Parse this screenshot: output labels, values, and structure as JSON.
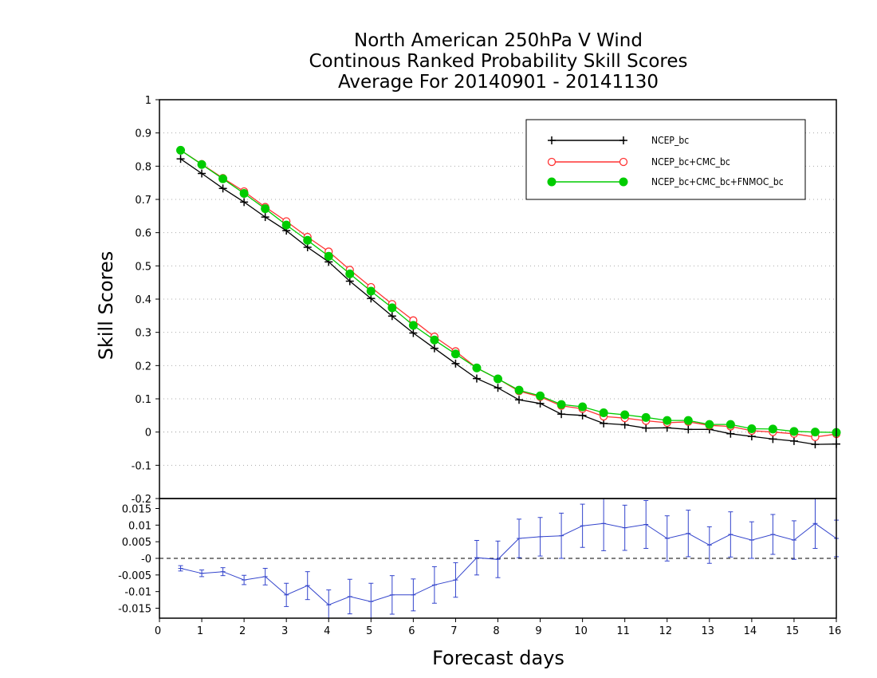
{
  "chart_data": {
    "type": "line",
    "title_lines": [
      "North American 250hPa V Wind",
      "Continous Ranked Probability Skill Scores",
      "Average For 20140901 - 20141130"
    ],
    "xlabel": "Forecast days",
    "ylabel": "Skill Scores",
    "xlim": [
      0,
      16
    ],
    "x_ticks": [
      "0",
      "1",
      "2",
      "3",
      "4",
      "5",
      "6",
      "7",
      "8",
      "9",
      "10",
      "11",
      "12",
      "13",
      "14",
      "15",
      "16"
    ],
    "grid": true,
    "legend_position": "top-right",
    "top_panel": {
      "ylim": [
        -0.2,
        1
      ],
      "y_ticks": [
        "-0.2",
        "-0.1",
        "0",
        "0.1",
        "0.2",
        "0.3",
        "0.4",
        "0.5",
        "0.6",
        "0.7",
        "0.8",
        "0.9",
        "1"
      ],
      "x": [
        0.5,
        1,
        1.5,
        2,
        2.5,
        3,
        3.5,
        4,
        4.5,
        5,
        5.5,
        6,
        6.5,
        7,
        7.5,
        8,
        8.5,
        9,
        9.5,
        10,
        10.5,
        11,
        11.5,
        12,
        12.5,
        13,
        13.5,
        14,
        14.5,
        15,
        15.5,
        16
      ],
      "series": [
        {
          "name": "NCEP_bc",
          "color": "#000000",
          "marker": "plus",
          "values": [
            0.822,
            0.778,
            0.733,
            0.692,
            0.647,
            0.606,
            0.556,
            0.512,
            0.454,
            0.402,
            0.349,
            0.298,
            0.252,
            0.206,
            0.161,
            0.133,
            0.097,
            0.086,
            0.054,
            0.05,
            0.026,
            0.022,
            0.012,
            0.013,
            0.008,
            0.008,
            -0.005,
            -0.013,
            -0.021,
            -0.027,
            -0.037,
            -0.036
          ]
        },
        {
          "name": "NCEP_bc+CMC_bc",
          "color": "#ff3333",
          "marker": "open-circle",
          "values": [
            0.848,
            0.806,
            0.764,
            0.724,
            0.677,
            0.634,
            0.587,
            0.543,
            0.488,
            0.436,
            0.385,
            0.336,
            0.287,
            0.243,
            0.193,
            0.16,
            0.123,
            0.106,
            0.079,
            0.07,
            0.047,
            0.042,
            0.034,
            0.028,
            0.031,
            0.02,
            0.017,
            0.004,
            -0.0,
            -0.005,
            -0.015,
            -0.006
          ]
        },
        {
          "name": "NCEP_bc+CMC_bc+FNMOC_bc",
          "color": "#00cc00",
          "marker": "filled-circle",
          "values": [
            0.848,
            0.805,
            0.762,
            0.718,
            0.672,
            0.623,
            0.577,
            0.529,
            0.476,
            0.424,
            0.374,
            0.321,
            0.277,
            0.235,
            0.193,
            0.16,
            0.126,
            0.109,
            0.083,
            0.076,
            0.058,
            0.052,
            0.044,
            0.035,
            0.035,
            0.023,
            0.023,
            0.01,
            0.009,
            0.002,
            0.0,
            -0.001
          ]
        }
      ]
    },
    "bottom_panel": {
      "ylim": [
        -0.018,
        0.018
      ],
      "y_ticks": [
        "-0.015",
        "-0.01",
        "-0.005",
        "-0",
        "0.005",
        "0.01",
        "0.015"
      ],
      "x": [
        0.5,
        1,
        1.5,
        2,
        2.5,
        3,
        3.5,
        4,
        4.5,
        5,
        5.5,
        6,
        6.5,
        7,
        7.5,
        8,
        8.5,
        9,
        9.5,
        10,
        10.5,
        11,
        11.5,
        12,
        12.5,
        13,
        13.5,
        14,
        14.5,
        15,
        15.5,
        16
      ],
      "series": [
        {
          "name": "",
          "color": "#3344cc",
          "values": [
            -0.003,
            -0.0045,
            -0.004,
            -0.0065,
            -0.0055,
            -0.011,
            -0.0082,
            -0.014,
            -0.0115,
            -0.013,
            -0.011,
            -0.011,
            -0.008,
            -0.0065,
            0.0002,
            -0.0003,
            0.006,
            0.0065,
            0.0068,
            0.0098,
            0.0105,
            0.0092,
            0.0102,
            0.006,
            0.0075,
            0.004,
            0.0072,
            0.0055,
            0.0072,
            0.0055,
            0.0105,
            0.006
          ],
          "error_bars": [
            0.0008,
            0.001,
            0.0012,
            0.0014,
            0.0025,
            0.0035,
            0.0042,
            0.0045,
            0.0052,
            0.0055,
            0.0058,
            0.0048,
            0.0055,
            0.0052,
            0.0052,
            0.0055,
            0.0058,
            0.0058,
            0.0068,
            0.0065,
            0.0082,
            0.0068,
            0.0072,
            0.0068,
            0.007,
            0.0055,
            0.0068,
            0.0055,
            0.006,
            0.0058,
            0.0075,
            0.0055
          ]
        }
      ]
    }
  }
}
